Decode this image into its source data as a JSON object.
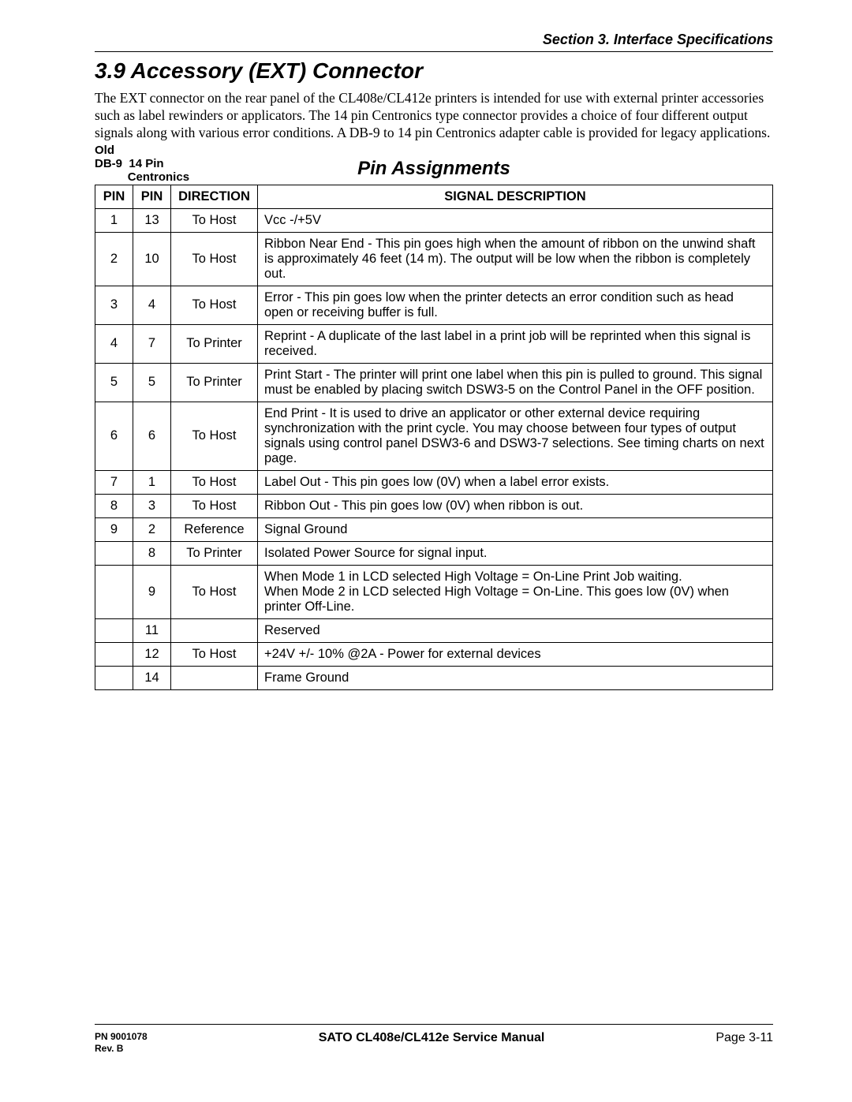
{
  "header": {
    "section": "Section 3.  Interface Specifications"
  },
  "heading": "3.9  Accessory (EXT) Connector",
  "body": "The EXT connector on the rear panel of the CL408e/CL412e printers is intended for use with external printer accessories such as label rewinders or applicators.  The 14 pin Centronics type connector provides a choice of four different output signals along with various error conditions.  A DB-9 to 14 pin Centronics adapter cable is provided for legacy applications.",
  "table": {
    "caption": "Pin  Assignments",
    "left_heading_line1": "Old",
    "left_heading_db9": "DB-9",
    "left_heading_14pin": "14 Pin",
    "left_heading_cent": "Centronics",
    "columns": {
      "pin1": "PIN",
      "pin2": "PIN",
      "direction": "DIRECTION",
      "desc": "SIGNAL DESCRIPTION"
    },
    "rows": [
      {
        "p1": "1",
        "p2": "13",
        "dir": "To Host",
        "desc": "Vcc -/+5V"
      },
      {
        "p1": "2",
        "p2": "10",
        "dir": "To Host",
        "desc": "Ribbon Near End - This pin goes high when the amount of ribbon on the unwind shaft is approximately 46 feet (14 m).  The output will be low when the ribbon is completely out."
      },
      {
        "p1": "3",
        "p2": "4",
        "dir": "To Host",
        "desc": "Error - This pin goes low when the printer detects an error condition such as head open or receiving buffer is full."
      },
      {
        "p1": "4",
        "p2": "7",
        "dir": "To Printer",
        "desc": "Reprint - A duplicate of the last label in a print job will be reprinted when this signal is received."
      },
      {
        "p1": "5",
        "p2": "5",
        "dir": "To Printer",
        "desc": "Print Start - The printer will print one label when this pin is pulled to ground. This signal must be enabled by placing switch DSW3-5 on the Control Panel in the OFF position."
      },
      {
        "p1": "6",
        "p2": "6",
        "dir": "To Host",
        "desc": "End Print - It is used to drive an applicator or other external device requiring synchronization with the print cycle.  You may choose between four types of output signals using control panel DSW3-6 and DSW3-7 selections.  See timing charts on next page."
      },
      {
        "p1": "7",
        "p2": "1",
        "dir": "To Host",
        "desc": "Label Out - This pin goes low (0V) when a label error exists."
      },
      {
        "p1": "8",
        "p2": "3",
        "dir": "To Host",
        "desc": "Ribbon Out - This pin goes low (0V) when ribbon is out."
      },
      {
        "p1": "9",
        "p2": "2",
        "dir": "Reference",
        "desc": "Signal Ground"
      },
      {
        "p1": "",
        "p2": "8",
        "dir": "To Printer",
        "desc": "Isolated Power Source for signal input."
      },
      {
        "p1": "",
        "p2": "9",
        "dir": "To Host",
        "desc": "When Mode 1 in LCD selected High Voltage = On-Line Print Job waiting.\nWhen Mode 2 in LCD selected High Voltage = On-Line.  This goes low (0V) when printer Off-Line."
      },
      {
        "p1": "",
        "p2": "11",
        "dir": "",
        "desc": "Reserved"
      },
      {
        "p1": "",
        "p2": "12",
        "dir": "To Host",
        "desc": "+24V +/- 10% @2A - Power for external devices"
      },
      {
        "p1": "",
        "p2": "14",
        "dir": "",
        "desc": "Frame Ground"
      }
    ]
  },
  "footer": {
    "pn": "PN 9001078",
    "rev": "Rev. B",
    "center": "SATO CL408e/CL412e Service Manual",
    "page": "Page 3-11"
  }
}
